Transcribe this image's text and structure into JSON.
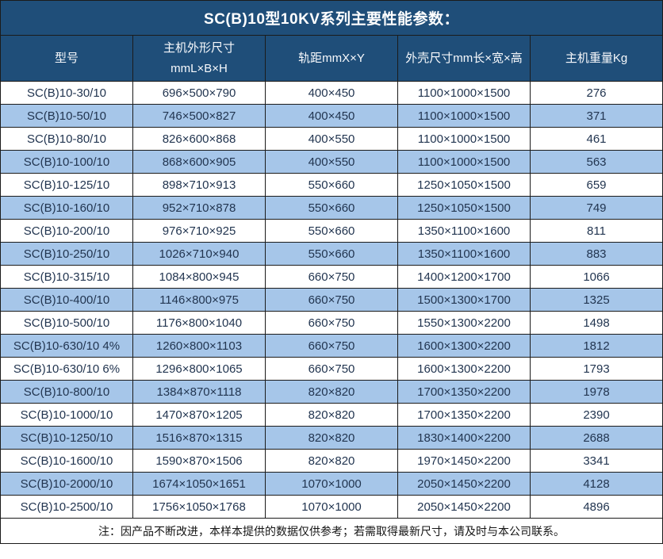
{
  "title": "SC(B)10型10KV系列主要性能参数：",
  "table": {
    "columns": [
      "型号",
      "主机外形尺寸\nmmL×B×H",
      "轨距mmX×Y",
      "外壳尺寸mm长×宽×高",
      "主机重量Kg"
    ],
    "rows": [
      [
        "SC(B)10-30/10",
        "696×500×790",
        "400×450",
        "1100×1000×1500",
        "276"
      ],
      [
        "SC(B)10-50/10",
        "746×500×827",
        "400×450",
        "1100×1000×1500",
        "371"
      ],
      [
        "SC(B)10-80/10",
        "826×600×868",
        "400×550",
        "1100×1000×1500",
        "461"
      ],
      [
        "SC(B)10-100/10",
        "868×600×905",
        "400×550",
        "1100×1000×1500",
        "563"
      ],
      [
        "SC(B)10-125/10",
        "898×710×913",
        "550×660",
        "1250×1050×1500",
        "659"
      ],
      [
        "SC(B)10-160/10",
        "952×710×878",
        "550×660",
        "1250×1050×1500",
        "749"
      ],
      [
        "SC(B)10-200/10",
        "976×710×925",
        "550×660",
        "1350×1100×1600",
        "811"
      ],
      [
        "SC(B)10-250/10",
        "1026×710×940",
        "550×660",
        "1350×1100×1600",
        "883"
      ],
      [
        "SC(B)10-315/10",
        "1084×800×945",
        "660×750",
        "1400×1200×1700",
        "1066"
      ],
      [
        "SC(B)10-400/10",
        "1146×800×975",
        "660×750",
        "1500×1300×1700",
        "1325"
      ],
      [
        "SC(B)10-500/10",
        "1176×800×1040",
        "660×750",
        "1550×1300×2200",
        "1498"
      ],
      [
        "SC(B)10-630/10 4%",
        "1260×800×1103",
        "660×750",
        "1600×1300×2200",
        "1812"
      ],
      [
        "SC(B)10-630/10 6%",
        "1296×800×1065",
        "660×750",
        "1600×1300×2200",
        "1793"
      ],
      [
        "SC(B)10-800/10",
        "1384×870×1118",
        "820×820",
        "1700×1350×2200",
        "1978"
      ],
      [
        "SC(B)10-1000/10",
        "1470×870×1205",
        "820×820",
        "1700×1350×2200",
        "2390"
      ],
      [
        "SC(B)10-1250/10",
        "1516×870×1315",
        "820×820",
        "1830×1400×2200",
        "2688"
      ],
      [
        "SC(B)10-1600/10",
        "1590×870×1506",
        "820×820",
        "1970×1450×2200",
        "3341"
      ],
      [
        "SC(B)10-2000/10",
        "1674×1050×1651",
        "1070×1000",
        "2050×1450×2200",
        "4128"
      ],
      [
        "SC(B)10-2500/10",
        "1756×1050×1768",
        "1070×1000",
        "2050×1450×2200",
        "4896"
      ]
    ]
  },
  "note": "注：因产品不断改进，本样本提供的数据仅供参考；若需取得最新尺寸，请及时与本公司联系。",
  "colors": {
    "header_bg": "#1F4E79",
    "row_alt_bg": "#A6C6E9",
    "border": "#1b1b1b",
    "header_text": "#F7F9FC",
    "body_text": "#223550"
  }
}
